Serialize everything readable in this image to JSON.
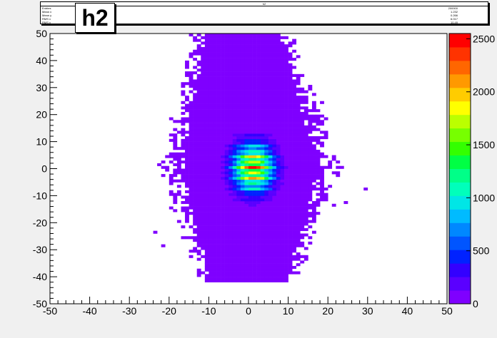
{
  "histogram": {
    "name": "h2",
    "stats_title": "h2",
    "stats": [
      {
        "label": "Entries",
        "value": "200000"
      },
      {
        "label": "Mean x",
        "value": "1.232"
      },
      {
        "label": "Mean y",
        "value": "0.266"
      },
      {
        "label": "RMS x",
        "value": "6.017"
      },
      {
        "label": "RMS y",
        "value": "10.49"
      }
    ]
  },
  "chart_data": {
    "type": "heatmap",
    "title": "h2",
    "xlabel": "",
    "ylabel": "",
    "xlim": [
      -50,
      50
    ],
    "ylim": [
      -50,
      50
    ],
    "x_ticks": [
      -50,
      -40,
      -30,
      -20,
      -10,
      0,
      10,
      20,
      30,
      40,
      50
    ],
    "y_ticks": [
      -50,
      -40,
      -30,
      -20,
      -10,
      0,
      10,
      20,
      30,
      40,
      50
    ],
    "bins": {
      "nx": 100,
      "ny": 100
    },
    "gaussian_core": {
      "mean_x": 1.2,
      "mean_y": 0.3,
      "sigma_x": 3.5,
      "sigma_y": 6.0,
      "peak": 2550
    },
    "row_modulation": {
      "period_y": 4,
      "peak_rows_y": [
        0.5,
        -4.5,
        8.5,
        4.5,
        -8.5
      ]
    },
    "halo": {
      "half_width_at_y0": 20,
      "x_range": [
        -22,
        22
      ],
      "y_range": [
        -42,
        50
      ]
    },
    "colorbar": {
      "zlim": [
        0,
        2550
      ],
      "tick_values": [
        0,
        500,
        1000,
        1500,
        2000,
        2500
      ],
      "tick_labels": [
        "0",
        "500",
        "1000",
        "1500",
        "2000",
        "2500"
      ],
      "palette": [
        "#7f00ff",
        "#5a00ff",
        "#3300ff",
        "#0022ff",
        "#0055ff",
        "#0088ff",
        "#00bbff",
        "#00e6e6",
        "#00ffbb",
        "#00ff88",
        "#00ff44",
        "#33ff00",
        "#77ff00",
        "#bbff00",
        "#ffff00",
        "#ffcc00",
        "#ff9900",
        "#ff6600",
        "#ff3300",
        "#ff0000"
      ]
    }
  }
}
